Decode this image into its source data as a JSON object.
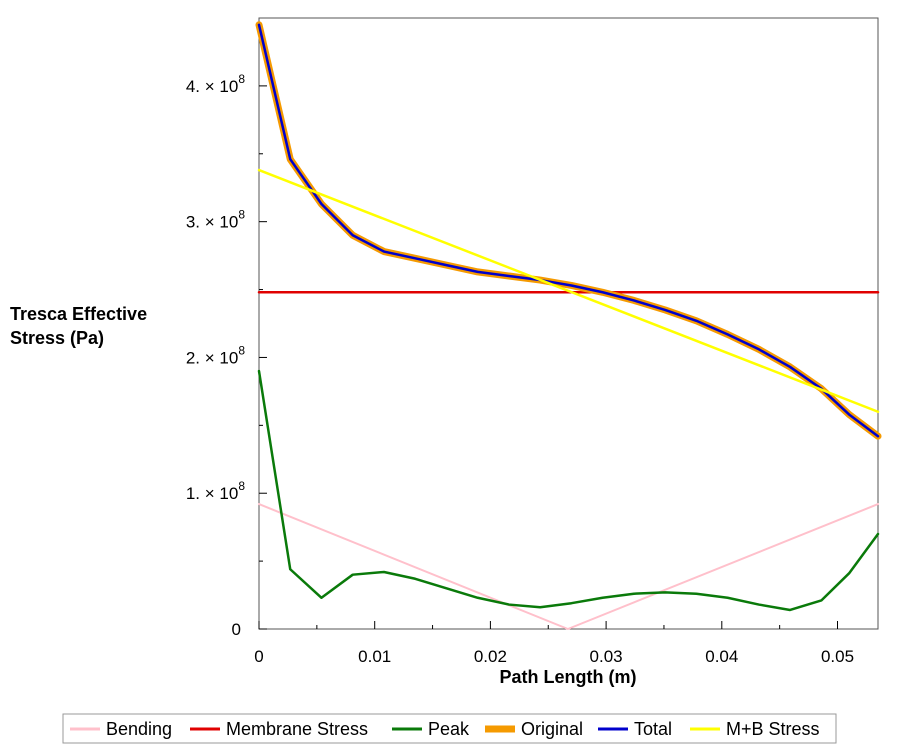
{
  "chart_data": {
    "type": "line",
    "title": "",
    "xlabel": "Path Length (m)",
    "ylabel_lines": [
      "Tresca Effective",
      "Stress (Pa)"
    ],
    "xlim": [
      0,
      0.0535
    ],
    "ylim": [
      0,
      450000000.0
    ],
    "x_ticks": [
      {
        "value": 0,
        "label": "0"
      },
      {
        "value": 0.01,
        "label": "0.01"
      },
      {
        "value": 0.02,
        "label": "0.02"
      },
      {
        "value": 0.03,
        "label": "0.03"
      },
      {
        "value": 0.04,
        "label": "0.04"
      },
      {
        "value": 0.05,
        "label": "0.05"
      }
    ],
    "y_ticks": [
      {
        "value": 0,
        "label": "0",
        "mant": "",
        "exp": ""
      },
      {
        "value": 100000000.0,
        "label": "",
        "mant": "1. × 10",
        "exp": "8"
      },
      {
        "value": 200000000.0,
        "label": "",
        "mant": "2. × 10",
        "exp": "8"
      },
      {
        "value": 300000000.0,
        "label": "",
        "mant": "3. × 10",
        "exp": "8"
      },
      {
        "value": 400000000.0,
        "label": "",
        "mant": "4. × 10",
        "exp": "8"
      }
    ],
    "grid": false,
    "legend_position": "bottom",
    "series": [
      {
        "name": "Bending",
        "color": "#ffc0cb",
        "width": 2,
        "x": [
          0,
          0.0267,
          0.0535
        ],
        "y": [
          92000000.0,
          0,
          92000000.0
        ]
      },
      {
        "name": "Membrane Stress",
        "color": "#e00000",
        "width": 2.5,
        "x": [
          0,
          0.0535
        ],
        "y": [
          248000000.0,
          248000000.0
        ]
      },
      {
        "name": "Peak",
        "color": "#0a7a0a",
        "width": 2.5,
        "x": [
          0,
          0.0027,
          0.0054,
          0.0081,
          0.0108,
          0.0135,
          0.0162,
          0.0189,
          0.0216,
          0.0243,
          0.027,
          0.0297,
          0.0324,
          0.0351,
          0.0378,
          0.0405,
          0.0432,
          0.0459,
          0.0486,
          0.051,
          0.0535
        ],
        "y": [
          190000000.0,
          44000000.0,
          23000000.0,
          40000000.0,
          42000000.0,
          37000000.0,
          30000000.0,
          23000000.0,
          18000000.0,
          16000000.0,
          19000000.0,
          23000000.0,
          26000000.0,
          27000000.0,
          26000000.0,
          23000000.0,
          18000000.0,
          14000000.0,
          21000000.0,
          41000000.0,
          70000000.0
        ]
      },
      {
        "name": "Original",
        "color": "#f59a00",
        "width": 7,
        "x": [
          0,
          0.0027,
          0.0054,
          0.0081,
          0.0108,
          0.0135,
          0.0162,
          0.0189,
          0.0216,
          0.0243,
          0.027,
          0.0297,
          0.0324,
          0.0351,
          0.0378,
          0.0405,
          0.0432,
          0.0459,
          0.0486,
          0.051,
          0.0535
        ],
        "y": [
          445000000.0,
          346000000.0,
          313000000.0,
          290000000.0,
          278000000.0,
          273000000.0,
          268000000.0,
          263000000.0,
          260000000.0,
          257000000.0,
          253000000.0,
          248000000.0,
          242000000.0,
          235000000.0,
          227000000.0,
          217000000.0,
          206000000.0,
          193000000.0,
          177000000.0,
          158000000.0,
          142000000.0
        ]
      },
      {
        "name": "Total",
        "color": "#0000cc",
        "width": 2.5,
        "x": [
          0,
          0.0027,
          0.0054,
          0.0081,
          0.0108,
          0.0135,
          0.0162,
          0.0189,
          0.0216,
          0.0243,
          0.027,
          0.0297,
          0.0324,
          0.0351,
          0.0378,
          0.0405,
          0.0432,
          0.0459,
          0.0486,
          0.051,
          0.0535
        ],
        "y": [
          445000000.0,
          346000000.0,
          313000000.0,
          290000000.0,
          278000000.0,
          273000000.0,
          268000000.0,
          263000000.0,
          260000000.0,
          257000000.0,
          253000000.0,
          248000000.0,
          242000000.0,
          235000000.0,
          227000000.0,
          217000000.0,
          206000000.0,
          193000000.0,
          177000000.0,
          158000000.0,
          142000000.0
        ]
      },
      {
        "name": "M+B Stress",
        "color": "#ffff00",
        "width": 2.5,
        "x": [
          0,
          0.0535
        ],
        "y": [
          338000000.0,
          160000000.0
        ]
      }
    ],
    "legend_order": [
      "Bending",
      "Membrane Stress",
      "Peak",
      "Original",
      "Total",
      "M+B Stress"
    ]
  }
}
